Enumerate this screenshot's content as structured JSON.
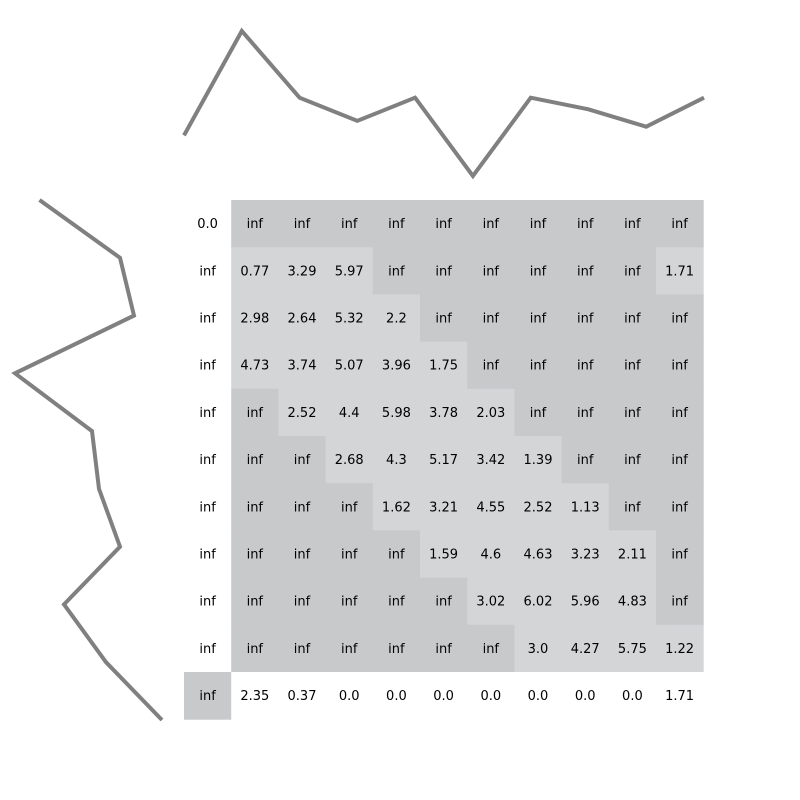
{
  "chart_data": {
    "type": "heatmap",
    "title": "",
    "xlabel": "",
    "ylabel": "",
    "rows": 11,
    "cols": 11,
    "cells": [
      [
        "0.0",
        "inf",
        "inf",
        "inf",
        "inf",
        "inf",
        "inf",
        "inf",
        "inf",
        "inf",
        "inf"
      ],
      [
        "inf",
        "0.77",
        "3.29",
        "5.97",
        "inf",
        "inf",
        "inf",
        "inf",
        "inf",
        "inf",
        "1.71"
      ],
      [
        "inf",
        "2.98",
        "2.64",
        "5.32",
        "2.2",
        "inf",
        "inf",
        "inf",
        "inf",
        "inf",
        "inf"
      ],
      [
        "inf",
        "4.73",
        "3.74",
        "5.07",
        "3.96",
        "1.75",
        "inf",
        "inf",
        "inf",
        "inf",
        "inf"
      ],
      [
        "inf",
        "inf",
        "2.52",
        "4.4",
        "5.98",
        "3.78",
        "2.03",
        "inf",
        "inf",
        "inf",
        "inf"
      ],
      [
        "inf",
        "inf",
        "inf",
        "2.68",
        "4.3",
        "5.17",
        "3.42",
        "1.39",
        "inf",
        "inf",
        "inf"
      ],
      [
        "inf",
        "inf",
        "inf",
        "inf",
        "1.62",
        "3.21",
        "4.55",
        "2.52",
        "1.13",
        "inf",
        "inf"
      ],
      [
        "inf",
        "inf",
        "inf",
        "inf",
        "inf",
        "1.59",
        "4.6",
        "4.63",
        "3.23",
        "2.11",
        "inf"
      ],
      [
        "inf",
        "inf",
        "inf",
        "inf",
        "inf",
        "inf",
        "3.02",
        "6.02",
        "5.96",
        "4.83",
        "inf"
      ],
      [
        "inf",
        "inf",
        "inf",
        "inf",
        "inf",
        "inf",
        "inf",
        "3.0",
        "4.27",
        "5.75",
        "1.22"
      ],
      [
        "inf",
        "2.35",
        "0.37",
        "0.0",
        "0.0",
        "0.0",
        "0.0",
        "0.0",
        "0.0",
        "0.0",
        "1.71"
      ]
    ],
    "shading": [
      [
        "white",
        "dark",
        "dark",
        "dark",
        "dark",
        "dark",
        "dark",
        "dark",
        "dark",
        "dark",
        "dark"
      ],
      [
        "white",
        "light",
        "light",
        "light",
        "dark",
        "dark",
        "dark",
        "dark",
        "dark",
        "dark",
        "light"
      ],
      [
        "white",
        "light",
        "light",
        "light",
        "light",
        "dark",
        "dark",
        "dark",
        "dark",
        "dark",
        "dark"
      ],
      [
        "white",
        "light",
        "light",
        "light",
        "light",
        "light",
        "dark",
        "dark",
        "dark",
        "dark",
        "dark"
      ],
      [
        "white",
        "dark",
        "light",
        "light",
        "light",
        "light",
        "light",
        "dark",
        "dark",
        "dark",
        "dark"
      ],
      [
        "white",
        "dark",
        "dark",
        "light",
        "light",
        "light",
        "light",
        "light",
        "dark",
        "dark",
        "dark"
      ],
      [
        "white",
        "dark",
        "dark",
        "dark",
        "light",
        "light",
        "light",
        "light",
        "light",
        "dark",
        "dark"
      ],
      [
        "white",
        "dark",
        "dark",
        "dark",
        "dark",
        "light",
        "light",
        "light",
        "light",
        "light",
        "dark"
      ],
      [
        "white",
        "dark",
        "dark",
        "dark",
        "dark",
        "dark",
        "light",
        "light",
        "light",
        "light",
        "dark"
      ],
      [
        "white",
        "dark",
        "dark",
        "dark",
        "dark",
        "dark",
        "dark",
        "light",
        "light",
        "light",
        "light"
      ],
      [
        "dark",
        "white",
        "white",
        "white",
        "white",
        "white",
        "white",
        "white",
        "white",
        "white",
        "white"
      ]
    ],
    "top_series": {
      "values": [
        -0.65,
        1.15,
        0.0,
        -0.4,
        0.0,
        -1.35,
        0.0,
        -0.2,
        -0.5,
        0.0
      ]
    },
    "left_series": {
      "values": [
        1.35,
        0.2,
        0.0,
        1.7,
        0.6,
        0.5,
        0.2,
        1.0,
        0.4,
        -0.4
      ]
    },
    "colors": {
      "dark": "#c8c9cb",
      "light": "#d4d5d7",
      "white": "#ffffff",
      "line": "#808080",
      "text": "#000000"
    },
    "grid": false,
    "legend": "none"
  }
}
